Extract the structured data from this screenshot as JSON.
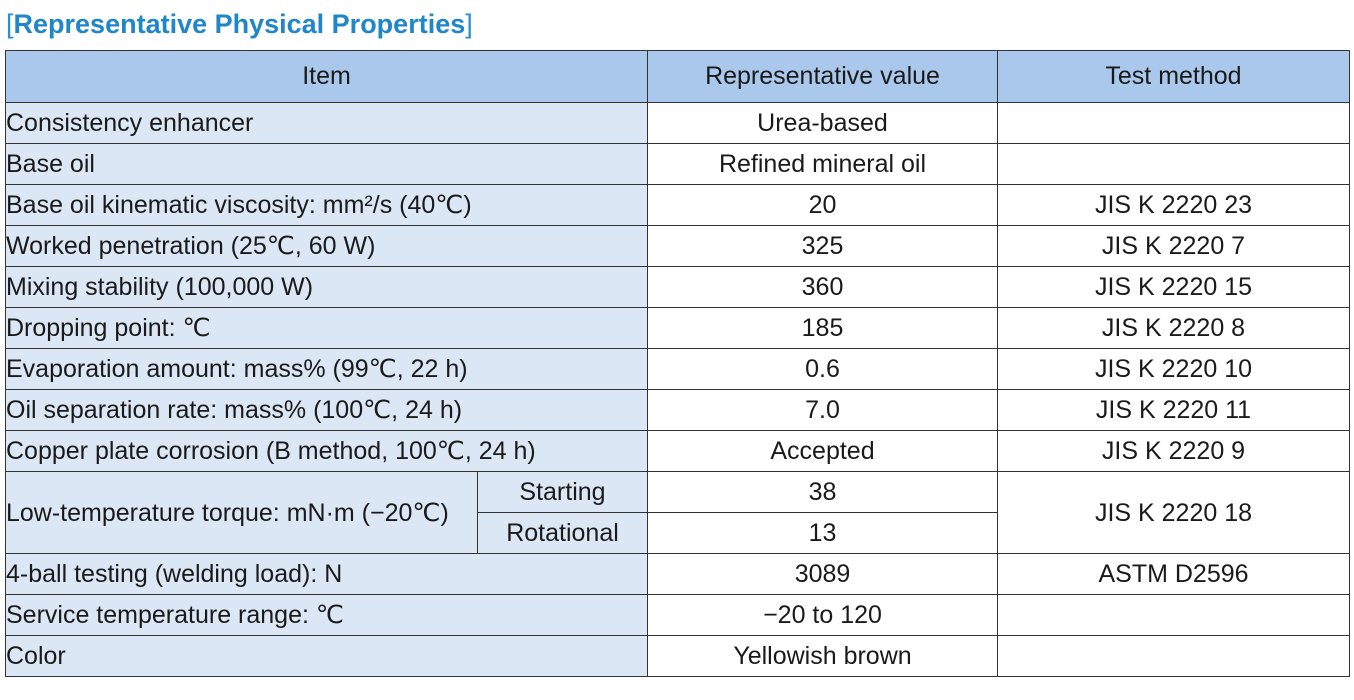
{
  "title": {
    "open_bracket": "[",
    "text": "Representative Physical Properties",
    "close_bracket": "]"
  },
  "table": {
    "headers": {
      "item": "Item",
      "value": "Representative value",
      "method": "Test method"
    },
    "rows": [
      {
        "item": "Consistency enhancer",
        "value": "Urea-based",
        "method": ""
      },
      {
        "item": "Base oil",
        "value": "Refined mineral oil",
        "method": ""
      },
      {
        "item": "Base oil kinematic viscosity: mm²/s (40℃)",
        "value": "20",
        "method": "JIS K 2220 23"
      },
      {
        "item": "Worked penetration (25℃, 60 W)",
        "value": "325",
        "method": "JIS K 2220 7"
      },
      {
        "item": "Mixing stability (100,000 W)",
        "value": "360",
        "method": "JIS K 2220 15"
      },
      {
        "item": "Dropping point: ℃",
        "value": "185",
        "method": "JIS K 2220 8"
      },
      {
        "item": "Evaporation amount: mass% (99℃, 22 h)",
        "value": "0.6",
        "method": "JIS K 2220 10"
      },
      {
        "item": "Oil separation rate: mass% (100℃, 24 h)",
        "value": "7.0",
        "method": "JIS K 2220 11"
      },
      {
        "item": "Copper plate corrosion (B method, 100℃, 24 h)",
        "value": "Accepted",
        "method": "JIS K 2220 9"
      }
    ],
    "torque": {
      "item": "Low-temperature torque: mN·m (−20℃)",
      "method": "JIS K 2220 18",
      "starting": {
        "label": "Starting",
        "value": "38"
      },
      "rotational": {
        "label": "Rotational",
        "value": "13"
      }
    },
    "rows_after": [
      {
        "item": "4-ball testing (welding load): N",
        "value": "3089",
        "method": "ASTM D2596"
      },
      {
        "item": "Service temperature range: ℃",
        "value": "−20 to 120",
        "method": ""
      },
      {
        "item": "Color",
        "value": "Yellowish brown",
        "method": ""
      }
    ]
  }
}
